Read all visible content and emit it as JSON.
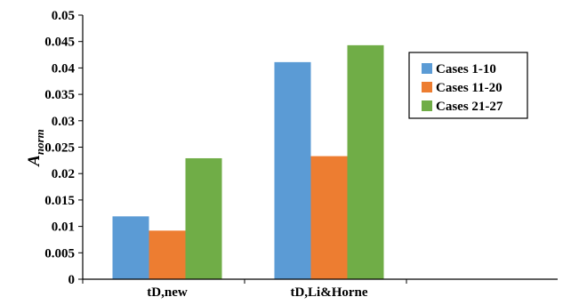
{
  "chart_data": {
    "type": "bar",
    "title": "",
    "xlabel": "",
    "ylabel": {
      "main": "A",
      "subscript": "norm"
    },
    "ylim": [
      0,
      0.05
    ],
    "yticks": [
      "0",
      "0.005",
      "0.01",
      "0.015",
      "0.02",
      "0.025",
      "0.03",
      "0.035",
      "0.04",
      "0.045",
      "0.05"
    ],
    "categories": [
      "tD,new",
      "tD,Li&Horne"
    ],
    "series": [
      {
        "name": "Cases 1-10",
        "color": "#5B9BD5",
        "values": [
          0.0119,
          0.0411
        ]
      },
      {
        "name": "Cases 11-20",
        "color": "#ED7D31",
        "values": [
          0.0092,
          0.0233
        ]
      },
      {
        "name": "Cases 21-27",
        "color": "#70AD47",
        "values": [
          0.0229,
          0.0443
        ]
      }
    ],
    "grid": false,
    "legend_position": "right"
  }
}
